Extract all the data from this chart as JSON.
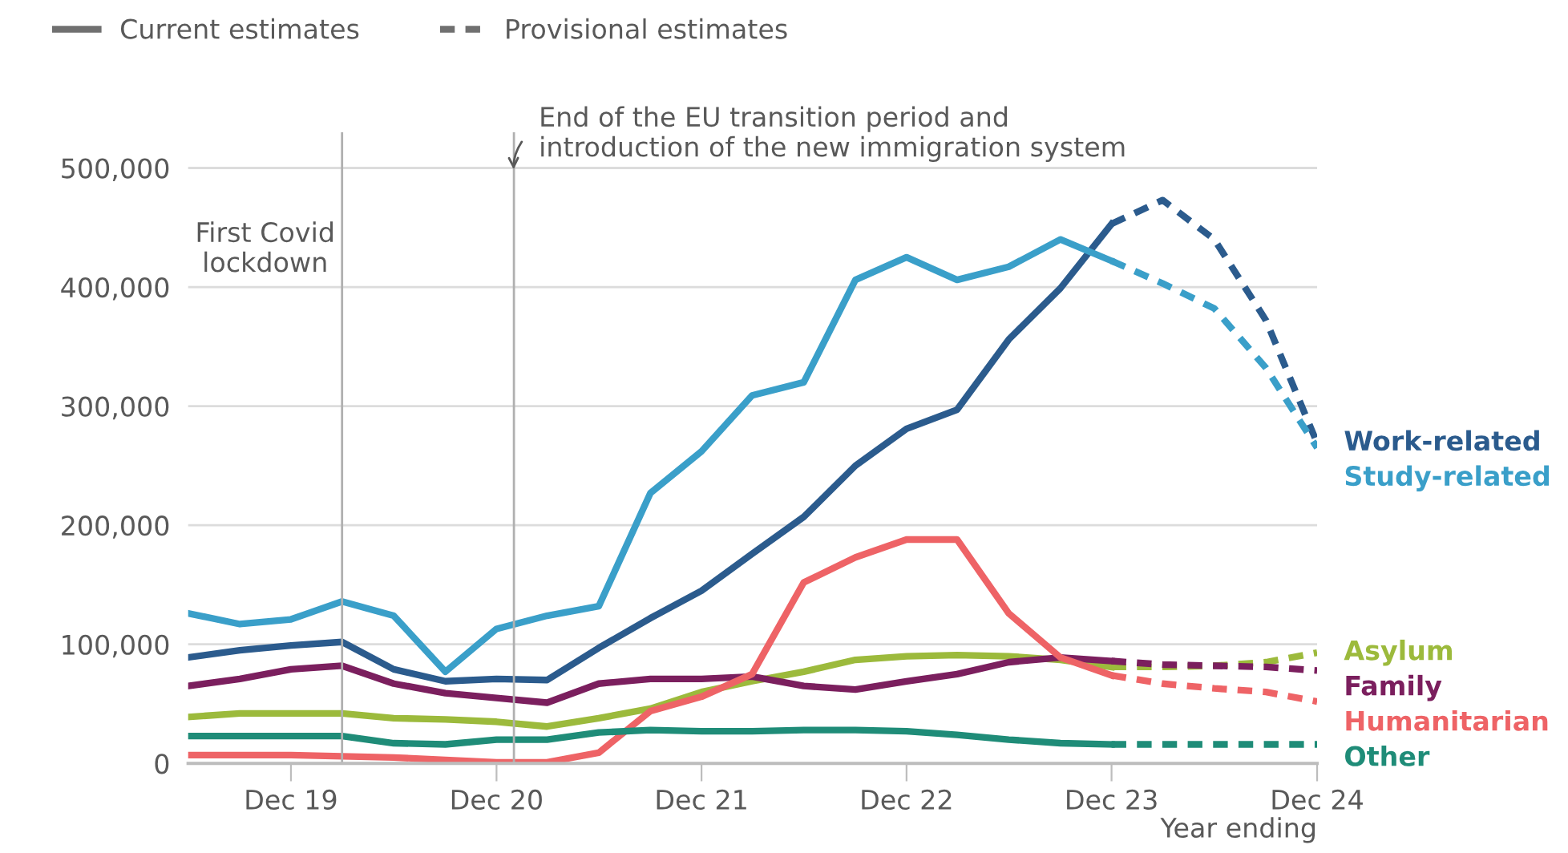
{
  "chart_data": {
    "type": "line",
    "x": [
      "2019-06",
      "2019-09",
      "2019-12",
      "2020-03",
      "2020-06",
      "2020-09",
      "2020-12",
      "2021-03",
      "2021-06",
      "2021-09",
      "2021-12",
      "2022-03",
      "2022-06",
      "2022-09",
      "2022-12",
      "2023-03",
      "2023-06",
      "2023-09",
      "2023-12"
    ],
    "xlim": [
      "2019-06",
      "2024-12"
    ],
    "xticks": [
      {
        "value": "2019-12",
        "label": "Dec 19"
      },
      {
        "value": "2020-12",
        "label": "Dec 20"
      },
      {
        "value": "2021-12",
        "label": "Dec 21"
      },
      {
        "value": "2022-12",
        "label": "Dec 22"
      },
      {
        "value": "2023-12",
        "label": "Dec 23"
      },
      {
        "value": "2024-12",
        "label": "Dec 24"
      }
    ],
    "xlabel": "Year ending",
    "ylim": [
      0,
      530000
    ],
    "yticks": [
      {
        "value": 0,
        "label": "0"
      },
      {
        "value": 100000,
        "label": "100,000"
      },
      {
        "value": 200000,
        "label": "200,000"
      },
      {
        "value": 300000,
        "label": "300,000"
      },
      {
        "value": 400000,
        "label": "400,000"
      },
      {
        "value": 500000,
        "label": "500,000"
      }
    ],
    "grid": "y",
    "legend": "top left",
    "series": [
      {
        "name": "Current estimates",
        "color": "#707070",
        "line_style": "solid",
        "values": [
          null,
          null,
          null,
          null,
          null,
          null,
          null,
          null,
          null,
          null,
          null,
          null,
          null,
          null,
          null,
          null,
          null,
          null,
          null
        ]
      },
      {
        "name": "Provisional estimates",
        "color": "#707070",
        "line_style": "dashed",
        "values": [
          null,
          null,
          null,
          null,
          null,
          null,
          null,
          null,
          null,
          null,
          null,
          null,
          null,
          null,
          null,
          null,
          null,
          null,
          null
        ]
      },
      {
        "name": "Work-related",
        "color": "#2b5b8d",
        "line_style": "solid",
        "values": [
          89000,
          95000,
          99000,
          102000,
          79000,
          69000,
          71000,
          70000,
          97000,
          122000,
          145000,
          176000,
          207000,
          250000,
          281000,
          297000,
          356000,
          399000,
          453000
        ]
      },
      {
        "color": "#2b5b8d",
        "line_style": "dashed",
        "x": [
          "2023-12",
          "2024-03",
          "2024-06",
          "2024-09",
          "2024-12"
        ],
        "values": [
          453000,
          473000,
          440000,
          372000,
          269000
        ]
      },
      {
        "name": "Study-related",
        "color": "#3a9fc9",
        "line_style": "solid",
        "values": [
          126000,
          117000,
          121000,
          136000,
          124000,
          77000,
          113000,
          124000,
          132000,
          227000,
          262000,
          309000,
          320000,
          406000,
          425000,
          406000,
          417000,
          440000,
          422000
        ]
      },
      {
        "color": "#3a9fc9",
        "line_style": "dashed",
        "x": [
          "2023-12",
          "2024-03",
          "2024-06",
          "2024-09",
          "2024-12"
        ],
        "values": [
          422000,
          403000,
          382000,
          332000,
          265000
        ]
      },
      {
        "name": "Asylum",
        "color": "#9cba3c",
        "line_style": "solid",
        "values": [
          39000,
          42000,
          42000,
          42000,
          38000,
          37000,
          35000,
          31000,
          38000,
          46000,
          60000,
          69000,
          77000,
          87000,
          90000,
          91000,
          90000,
          87000,
          81000
        ]
      },
      {
        "color": "#9cba3c",
        "line_style": "dashed",
        "x": [
          "2023-12",
          "2024-03",
          "2024-06",
          "2024-09",
          "2024-12"
        ],
        "values": [
          81000,
          81000,
          82000,
          85000,
          93000
        ]
      },
      {
        "name": "Family",
        "color": "#7b1f5e",
        "line_style": "solid",
        "values": [
          65000,
          71000,
          79000,
          82000,
          67000,
          59000,
          55000,
          51000,
          67000,
          71000,
          71000,
          73000,
          65000,
          62000,
          69000,
          75000,
          85000,
          89000,
          86000
        ]
      },
      {
        "color": "#7b1f5e",
        "line_style": "dashed",
        "x": [
          "2023-12",
          "2024-03",
          "2024-06",
          "2024-09",
          "2024-12"
        ],
        "values": [
          86000,
          83000,
          82000,
          81000,
          78000
        ]
      },
      {
        "name": "Humanitarian",
        "color": "#ee6366",
        "line_style": "solid",
        "values": [
          7000,
          7000,
          7000,
          6000,
          5000,
          3000,
          1000,
          1000,
          9000,
          44000,
          56000,
          75000,
          152000,
          173000,
          188000,
          188000,
          126000,
          89000,
          74000
        ]
      },
      {
        "color": "#ee6366",
        "line_style": "dashed",
        "x": [
          "2023-12",
          "2024-03",
          "2024-06",
          "2024-09",
          "2024-12"
        ],
        "values": [
          74000,
          67000,
          63000,
          60000,
          52000
        ]
      },
      {
        "name": "Other",
        "color": "#1f8c78",
        "line_style": "solid",
        "values": [
          23000,
          23000,
          23000,
          23000,
          17000,
          16000,
          20000,
          20000,
          26000,
          28000,
          27000,
          27000,
          28000,
          28000,
          27000,
          24000,
          20000,
          17000,
          16000
        ]
      },
      {
        "color": "#1f8c78",
        "line_style": "dashed",
        "x": [
          "2023-12",
          "2024-03",
          "2024-06",
          "2024-09",
          "2024-12"
        ],
        "values": [
          16000,
          16000,
          16000,
          16000,
          16000
        ]
      }
    ],
    "ref_lines": [
      {
        "axis": "x",
        "value": "2020-03",
        "label": "First Covid\nlockdown",
        "color": "#b0b0b0"
      },
      {
        "axis": "x",
        "value": "2021-01",
        "label": "End of the EU transition period and\nintroduction of the new immigration system",
        "color": "#b0b0b0"
      }
    ]
  }
}
